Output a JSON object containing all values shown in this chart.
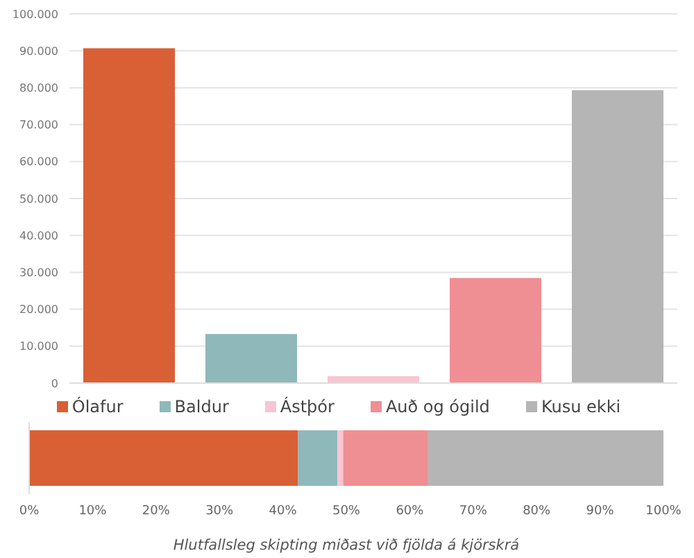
{
  "chart_data": [
    {
      "type": "bar",
      "categories": [
        null
      ],
      "series": [
        {
          "name": "Ólafur",
          "color": "#d95f35",
          "values": [
            90700
          ]
        },
        {
          "name": "Baldur",
          "color": "#8fb8bb",
          "values": [
            13300
          ]
        },
        {
          "name": "Ástþór",
          "color": "#f7c5d3",
          "values": [
            1900
          ]
        },
        {
          "name": "Auð og ógild",
          "color": "#ef8f93",
          "values": [
            28500
          ]
        },
        {
          "name": "Kusu ekki",
          "color": "#b5b5b5",
          "values": [
            79300
          ]
        }
      ],
      "ylim": [
        0,
        100000
      ],
      "yticks": [
        {
          "value": 0,
          "label": "0"
        },
        {
          "value": 10000,
          "label": "10.000"
        },
        {
          "value": 20000,
          "label": "20.000"
        },
        {
          "value": 30000,
          "label": "30.000"
        },
        {
          "value": 40000,
          "label": "40.000"
        },
        {
          "value": 50000,
          "label": "50.000"
        },
        {
          "value": 60000,
          "label": "60.000"
        },
        {
          "value": 70000,
          "label": "70.000"
        },
        {
          "value": 80000,
          "label": "80.000"
        },
        {
          "value": 90000,
          "label": "90.000"
        },
        {
          "value": 100000,
          "label": "100.000"
        }
      ],
      "grid": "y",
      "legend": "bottom"
    },
    {
      "type": "bar",
      "orientation": "horizontal",
      "stacked": true,
      "categories": [
        null
      ],
      "series": [
        {
          "color": "#d95f35",
          "values": [
            42.4
          ]
        },
        {
          "color": "#8fb8bb",
          "values": [
            6.2
          ]
        },
        {
          "color": "#f7c5d3",
          "values": [
            0.9
          ]
        },
        {
          "color": "#ef8f93",
          "values": [
            13.4
          ]
        },
        {
          "color": "#b5b5b5",
          "values": [
            37.1
          ]
        }
      ],
      "xlim": [
        0,
        100
      ],
      "xticks": [
        {
          "value": 0,
          "label": "0%"
        },
        {
          "value": 10,
          "label": "10%"
        },
        {
          "value": 20,
          "label": "20%"
        },
        {
          "value": 30,
          "label": "30%"
        },
        {
          "value": 40,
          "label": "40%"
        },
        {
          "value": 50,
          "label": "50%"
        },
        {
          "value": 60,
          "label": "60%"
        },
        {
          "value": 70,
          "label": "70%"
        },
        {
          "value": 80,
          "label": "80%"
        },
        {
          "value": 90,
          "label": "90%"
        },
        {
          "value": 100,
          "label": "100%"
        }
      ],
      "xlabel": "Hlutfallsleg skipting miðast við fjölda á kjörskrá"
    }
  ]
}
